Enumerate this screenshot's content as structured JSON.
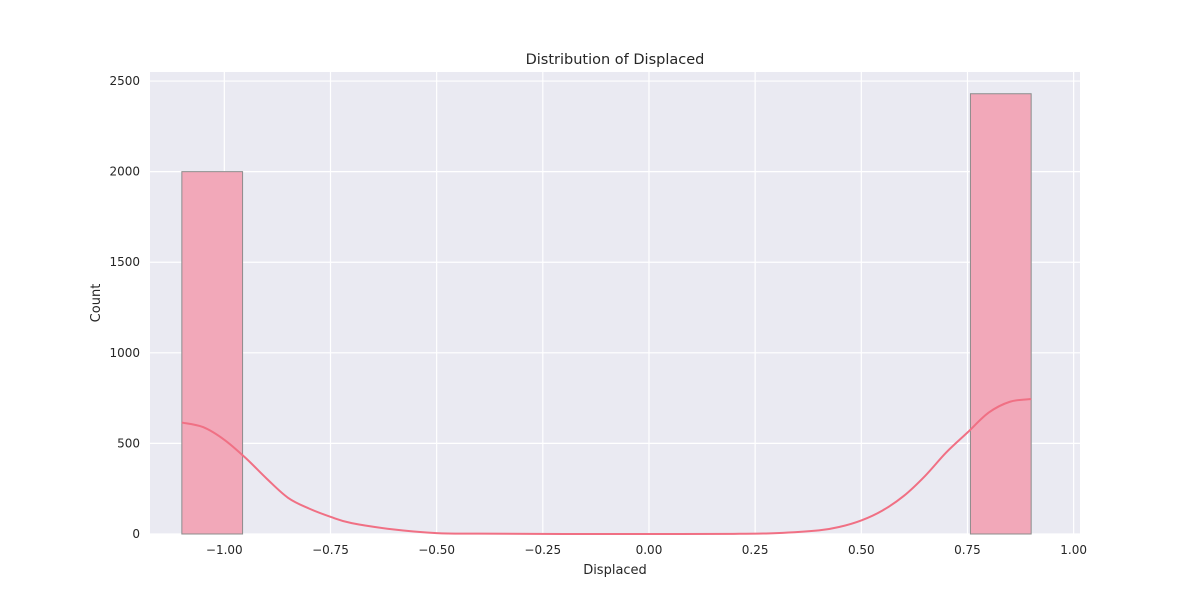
{
  "chart_data": {
    "type": "bar",
    "title": "Distribution of Displaced",
    "xlabel": "Displaced",
    "ylabel": "Count",
    "xlim": [
      -1.175,
      1.015
    ],
    "ylim": [
      0,
      2550
    ],
    "x_ticks": [
      -1.0,
      -0.75,
      -0.5,
      -0.25,
      0.0,
      0.25,
      0.5,
      0.75,
      1.0
    ],
    "x_tick_labels": [
      "−1.00",
      "−0.75",
      "−0.50",
      "−0.25",
      "0.00",
      "0.25",
      "0.50",
      "0.75",
      "1.00"
    ],
    "y_ticks": [
      0,
      500,
      1000,
      1500,
      2000,
      2500
    ],
    "y_tick_labels": [
      "0",
      "500",
      "1000",
      "1500",
      "2000",
      "2500"
    ],
    "bins": [
      {
        "x0": -1.1,
        "x1": -0.957,
        "count": 2000
      },
      {
        "x0": 0.757,
        "x1": 0.9,
        "count": 2430
      }
    ],
    "kde": {
      "x": [
        -1.1,
        -1.05,
        -1.0,
        -0.95,
        -0.9,
        -0.85,
        -0.8,
        -0.75,
        -0.7,
        -0.6,
        -0.5,
        -0.4,
        -0.2,
        0.0,
        0.2,
        0.3,
        0.4,
        0.45,
        0.5,
        0.55,
        0.6,
        0.65,
        0.7,
        0.75,
        0.8,
        0.85,
        0.9
      ],
      "y": [
        615,
        590,
        520,
        420,
        305,
        200,
        140,
        95,
        60,
        25,
        5,
        2,
        0,
        0,
        1,
        5,
        20,
        40,
        75,
        130,
        210,
        320,
        450,
        560,
        670,
        730,
        745
      ]
    },
    "grid": true,
    "legend": "none",
    "colors": {
      "background": "#eaeaf2",
      "bar_fill": "#f2a8b9",
      "bar_edge": "#8c8c8c",
      "kde_line": "#f07084",
      "grid": "#ffffff"
    }
  }
}
